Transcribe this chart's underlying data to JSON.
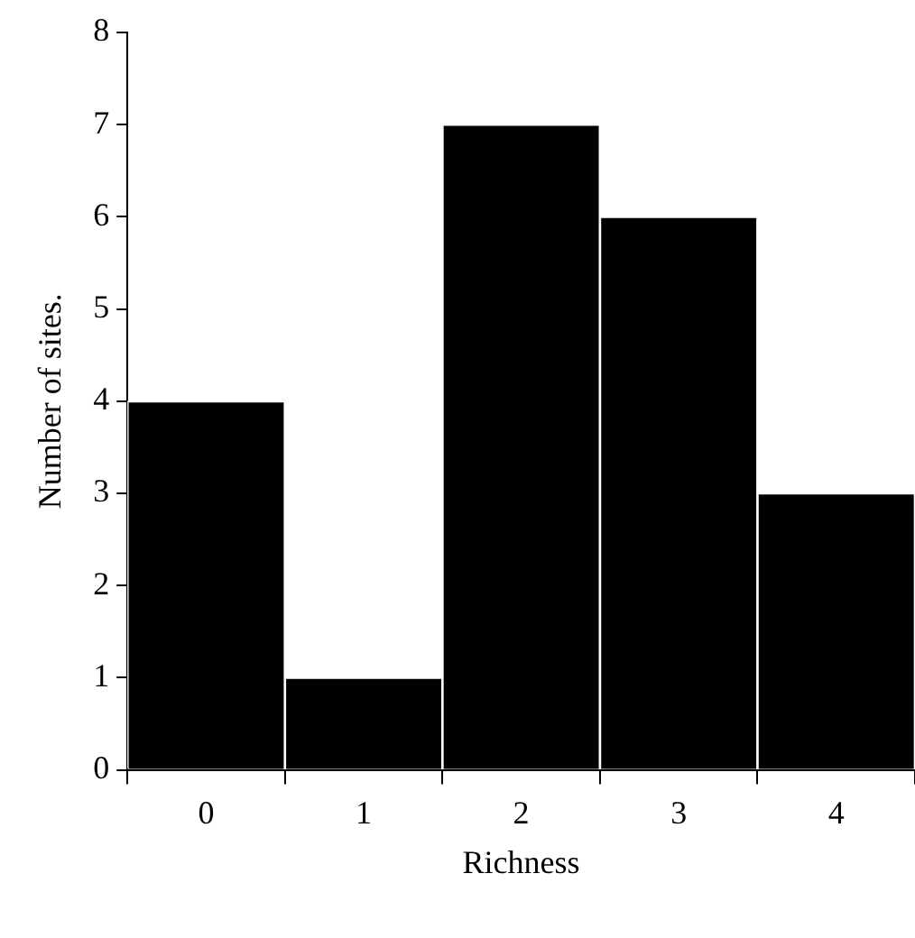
{
  "chart_data": {
    "type": "bar",
    "xlabel": "Richness",
    "ylabel": "Number of sites.",
    "categories": [
      "0",
      "1",
      "2",
      "3",
      "4"
    ],
    "values": [
      4,
      1,
      7,
      6,
      3
    ],
    "color": "#000000",
    "ylim": [
      0,
      8
    ],
    "yticks": [
      0,
      1,
      2,
      3,
      4,
      5,
      6,
      7,
      8
    ],
    "grid": false,
    "legend": false
  }
}
